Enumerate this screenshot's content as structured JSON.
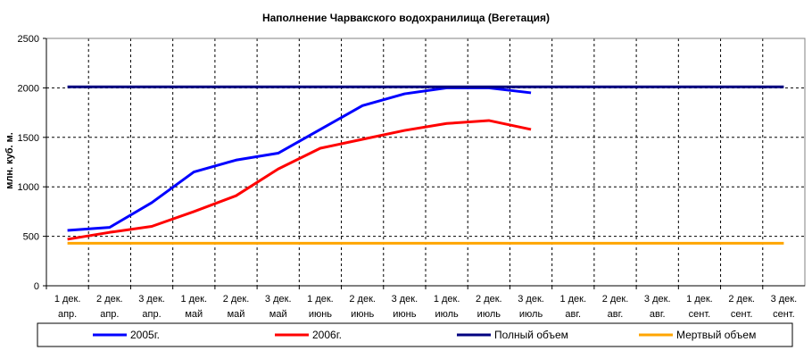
{
  "chart_data": {
    "type": "line",
    "title": "Наполнение Чарвакского водохранилища  (Вегетация)",
    "y_label": "млн. куб. м.",
    "categories": [
      [
        "1 дек.",
        "апр."
      ],
      [
        "2 дек.",
        "апр."
      ],
      [
        "3 дек.",
        "апр."
      ],
      [
        "1 дек.",
        "май"
      ],
      [
        "2 дек.",
        "май"
      ],
      [
        "3 дек.",
        "май"
      ],
      [
        "1 дек.",
        "июнь"
      ],
      [
        "2 дек.",
        "июнь"
      ],
      [
        "3 дек.",
        "июнь"
      ],
      [
        "1 дек.",
        "июль"
      ],
      [
        "2 дек.",
        "июль"
      ],
      [
        "3 дек.",
        "июль"
      ],
      [
        "1 дек.",
        "авг."
      ],
      [
        "2 дек.",
        "авг."
      ],
      [
        "3 дек.",
        "авг."
      ],
      [
        "1 дек.",
        "сент."
      ],
      [
        "2 дек.",
        "сент."
      ],
      [
        "3 дек.",
        "сент."
      ]
    ],
    "series": [
      {
        "name": "2005г.",
        "color": "#0000ff",
        "values": [
          560,
          590,
          840,
          1150,
          1270,
          1340,
          1580,
          1820,
          1940,
          2000,
          2000,
          1950,
          null,
          null,
          null,
          null,
          null,
          null
        ]
      },
      {
        "name": "2006г.",
        "color": "#ff0000",
        "values": [
          470,
          540,
          600,
          750,
          910,
          1180,
          1390,
          1480,
          1570,
          1640,
          1670,
          1580,
          null,
          null,
          null,
          null,
          null,
          null
        ]
      },
      {
        "name": "Полный объем",
        "color": "#000080",
        "values": [
          2010,
          2010,
          2010,
          2010,
          2010,
          2010,
          2010,
          2010,
          2010,
          2010,
          2010,
          2010,
          2010,
          2010,
          2010,
          2010,
          2010,
          2010
        ]
      },
      {
        "name": "Мертвый объем",
        "color": "#ffa500",
        "values": [
          430,
          430,
          430,
          430,
          430,
          430,
          430,
          430,
          430,
          430,
          430,
          430,
          430,
          430,
          430,
          430,
          430,
          430
        ]
      }
    ],
    "ylim": [
      0,
      2500
    ],
    "yticks": [
      0,
      500,
      1000,
      1500,
      2000,
      2500
    ],
    "grid": true
  }
}
